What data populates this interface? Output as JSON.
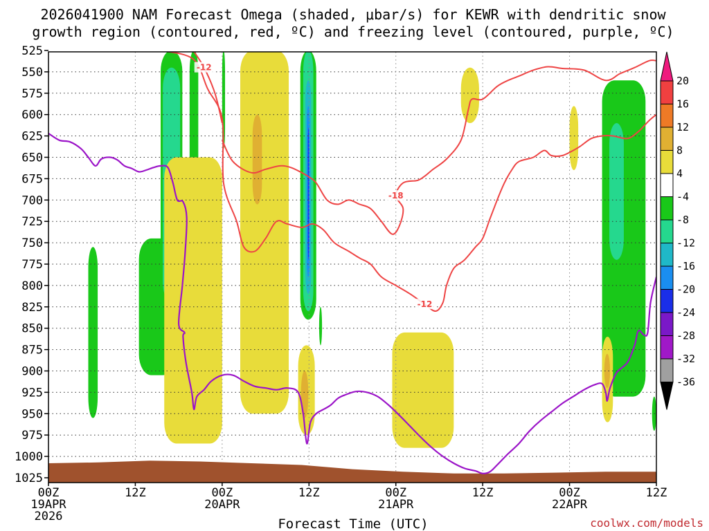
{
  "chart_data": {
    "type": "heatmap",
    "title_line1": "2026041900 NAM Forecast Omega (shaded, μbar/s) for KEWR with dendritic snow",
    "title_line2": "growth region (contoured, red, ºC) and freezing level (contoured, purple, ºC)",
    "xlabel": "Forecast Time (UTC)",
    "credit": "coolwx.com/models",
    "x_ticks": [
      {
        "hour": 0,
        "lines": [
          "00Z",
          "19APR",
          "2026"
        ]
      },
      {
        "hour": 12,
        "lines": [
          "12Z"
        ]
      },
      {
        "hour": 24,
        "lines": [
          "00Z",
          "20APR"
        ]
      },
      {
        "hour": 36,
        "lines": [
          "12Z"
        ]
      },
      {
        "hour": 48,
        "lines": [
          "00Z",
          "21APR"
        ]
      },
      {
        "hour": 60,
        "lines": [
          "12Z"
        ]
      },
      {
        "hour": 72,
        "lines": [
          "00Z",
          "22APR"
        ]
      },
      {
        "hour": 84,
        "lines": [
          "12Z"
        ]
      }
    ],
    "x_range": [
      0,
      84
    ],
    "y_ticks": [
      525,
      550,
      575,
      600,
      625,
      650,
      675,
      700,
      725,
      750,
      775,
      800,
      825,
      850,
      875,
      900,
      925,
      950,
      975,
      1000,
      1025
    ],
    "y_range": [
      525,
      1025
    ],
    "y_inverted": true,
    "grid": true,
    "colorbar": {
      "ticks": [
        "20",
        "16",
        "12",
        "8",
        "4",
        "-4",
        "-8",
        "-12",
        "-16",
        "-20",
        "-24",
        "-28",
        "-32",
        "-36"
      ],
      "colors": [
        "#ef1a7e",
        "#f04040",
        "#ee7a26",
        "#e0b032",
        "#e8dc3a",
        "#ffffff",
        "#19c819",
        "#25d88e",
        "#1fb8c8",
        "#1a8ef0",
        "#1a2ee8",
        "#7a18c8",
        "#a018c8",
        "#a0a0a0",
        "#000000"
      ]
    },
    "omega_regions": [
      {
        "value": -8,
        "color": "#19c819",
        "x": [
          15.5,
          18.5
        ],
        "p": [
          525,
          830
        ]
      },
      {
        "value": -8,
        "color": "#19c819",
        "x": [
          19.5,
          20.7
        ],
        "p": [
          525,
          830
        ]
      },
      {
        "value": -8,
        "color": "#19c819",
        "x": [
          24,
          24.4
        ],
        "p": [
          525,
          640
        ]
      },
      {
        "value": -8,
        "color": "#19c819",
        "x": [
          5.5,
          6.8
        ],
        "p": [
          755,
          955
        ]
      },
      {
        "value": -8,
        "color": "#19c819",
        "x": [
          12.5,
          17.5
        ],
        "p": [
          745,
          905
        ]
      },
      {
        "value": -8,
        "color": "#19c819",
        "x": [
          34.8,
          37
        ],
        "p": [
          525,
          840
        ]
      },
      {
        "value": -8,
        "color": "#19c819",
        "x": [
          37.4,
          37.8
        ],
        "p": [
          825,
          870
        ]
      },
      {
        "value": -8,
        "color": "#19c819",
        "x": [
          76.5,
          82.5
        ],
        "p": [
          560,
          930
        ]
      },
      {
        "value": -8,
        "color": "#19c819",
        "x": [
          83.4,
          84
        ],
        "p": [
          930,
          970
        ]
      },
      {
        "value": -12,
        "color": "#25d88e",
        "x": [
          15.8,
          18.2
        ],
        "p": [
          545,
          820
        ]
      },
      {
        "value": -12,
        "color": "#25d88e",
        "x": [
          35.2,
          36.6
        ],
        "p": [
          525,
          830
        ]
      },
      {
        "value": -12,
        "color": "#25d88e",
        "x": [
          77.5,
          79.5
        ],
        "p": [
          610,
          770
        ]
      },
      {
        "value": -16,
        "color": "#1fb8c8",
        "x": [
          35.5,
          36.3
        ],
        "p": [
          560,
          810
        ]
      },
      {
        "value": -20,
        "color": "#1a8ef0",
        "x": [
          35.7,
          36.1
        ],
        "p": [
          590,
          790
        ]
      },
      {
        "value": -24,
        "color": "#1a2ee8",
        "x": [
          35.85,
          36
        ],
        "p": [
          615,
          770
        ]
      },
      {
        "value": 4,
        "color": "#e8dc3a",
        "x": [
          26.5,
          33.2
        ],
        "p": [
          525,
          950
        ]
      },
      {
        "value": 4,
        "color": "#e8dc3a",
        "x": [
          16,
          24
        ],
        "p": [
          650,
          985
        ]
      },
      {
        "value": 4,
        "color": "#e8dc3a",
        "x": [
          34.5,
          36.8
        ],
        "p": [
          870,
          975
        ]
      },
      {
        "value": 4,
        "color": "#e8dc3a",
        "x": [
          47.5,
          56
        ],
        "p": [
          855,
          990
        ]
      },
      {
        "value": 4,
        "color": "#e8dc3a",
        "x": [
          57,
          59.5
        ],
        "p": [
          545,
          610
        ]
      },
      {
        "value": 4,
        "color": "#e8dc3a",
        "x": [
          72,
          73.2
        ],
        "p": [
          590,
          665
        ]
      },
      {
        "value": 4,
        "color": "#e8dc3a",
        "x": [
          76.5,
          78
        ],
        "p": [
          860,
          960
        ]
      },
      {
        "value": 8,
        "color": "#e0b032",
        "x": [
          28.2,
          29.5
        ],
        "p": [
          600,
          705
        ]
      },
      {
        "value": 8,
        "color": "#e0b032",
        "x": [
          34.9,
          35.9
        ],
        "p": [
          900,
          955
        ]
      },
      {
        "value": 8,
        "color": "#e0b032",
        "x": [
          76.8,
          77.6
        ],
        "p": [
          880,
          920
        ]
      }
    ],
    "surface": {
      "label": "terrain",
      "color": "#a0522d",
      "p_top": [
        1008,
        1007,
        1005,
        1006,
        1008,
        1010,
        1015,
        1018,
        1020,
        1020,
        1019,
        1018,
        1018
      ],
      "x": [
        0,
        7,
        14,
        21,
        28,
        35,
        42,
        49,
        56,
        63,
        70,
        77,
        84
      ]
    },
    "red_contours": [
      {
        "level": "-12",
        "points": [
          [
            15.5,
            525
          ],
          [
            20,
            535
          ],
          [
            22,
            570
          ],
          [
            24,
            605
          ],
          [
            24.2,
            680
          ],
          [
            26,
            725
          ],
          [
            27,
            755
          ],
          [
            28.5,
            760
          ],
          [
            30,
            745
          ],
          [
            31.5,
            725
          ],
          [
            33,
            728
          ],
          [
            35,
            732
          ],
          [
            36.5,
            728
          ],
          [
            38,
            735
          ],
          [
            39.5,
            750
          ],
          [
            41.5,
            760
          ],
          [
            43,
            768
          ],
          [
            44.5,
            775
          ],
          [
            46,
            790
          ],
          [
            48,
            800
          ],
          [
            50,
            810
          ],
          [
            52,
            822
          ],
          [
            53.5,
            830
          ],
          [
            54.5,
            820
          ],
          [
            55,
            800
          ],
          [
            56,
            780
          ],
          [
            57.5,
            770
          ],
          [
            59,
            755
          ],
          [
            60,
            745
          ],
          [
            61,
            722
          ],
          [
            62,
            700
          ],
          [
            63,
            680
          ],
          [
            64,
            665
          ],
          [
            65,
            655
          ],
          [
            67,
            650
          ],
          [
            68.5,
            642
          ],
          [
            69.5,
            648
          ],
          [
            71,
            648
          ],
          [
            72.5,
            642
          ],
          [
            73.5,
            637
          ],
          [
            75,
            628
          ],
          [
            76.5,
            625
          ],
          [
            78,
            625
          ],
          [
            80,
            628
          ],
          [
            81.5,
            620
          ],
          [
            83,
            607
          ],
          [
            84,
            600
          ]
        ]
      },
      {
        "level": "-12",
        "points": [
          [
            20,
            525
          ],
          [
            21.5,
            545
          ],
          [
            23,
            575
          ],
          [
            24,
            610
          ]
        ]
      },
      {
        "level": "-18",
        "points": [
          [
            24,
            630
          ],
          [
            25.5,
            655
          ],
          [
            28,
            668
          ],
          [
            30,
            664
          ],
          [
            32,
            660
          ],
          [
            33.5,
            662
          ],
          [
            35,
            668
          ],
          [
            36,
            673
          ],
          [
            37,
            680
          ],
          [
            38.5,
            700
          ],
          [
            40,
            705
          ],
          [
            41.5,
            700
          ],
          [
            43,
            705
          ],
          [
            44.5,
            710
          ],
          [
            46,
            725
          ],
          [
            47.5,
            740
          ],
          [
            48.5,
            730
          ],
          [
            49,
            710
          ],
          [
            48,
            695
          ],
          [
            49,
            680
          ],
          [
            51,
            677
          ],
          [
            52,
            672
          ],
          [
            53,
            665
          ],
          [
            55,
            652
          ],
          [
            57,
            630
          ],
          [
            58,
            595
          ],
          [
            58.5,
            582
          ],
          [
            60,
            582
          ],
          [
            62,
            567
          ],
          [
            63.5,
            560
          ],
          [
            65,
            555
          ],
          [
            67,
            548
          ],
          [
            69,
            544
          ],
          [
            71,
            546
          ],
          [
            74,
            548
          ],
          [
            77,
            560
          ],
          [
            79,
            552
          ],
          [
            81,
            545
          ],
          [
            83,
            537
          ],
          [
            84,
            537
          ]
        ]
      }
    ],
    "purple_contour": {
      "level": "0",
      "points": [
        [
          0,
          622
        ],
        [
          1.5,
          630
        ],
        [
          3,
          632
        ],
        [
          4.5,
          640
        ],
        [
          5.5,
          650
        ],
        [
          6.5,
          660
        ],
        [
          7.3,
          652
        ],
        [
          8.5,
          650
        ],
        [
          9.5,
          653
        ],
        [
          10.5,
          660
        ],
        [
          11.5,
          663
        ],
        [
          12.5,
          667
        ],
        [
          13.5,
          665
        ],
        [
          14.5,
          662
        ],
        [
          15.5,
          660
        ],
        [
          16.5,
          662
        ],
        [
          17.2,
          680
        ],
        [
          17.8,
          700
        ],
        [
          18.6,
          702
        ],
        [
          19.1,
          720
        ],
        [
          18.9,
          760
        ],
        [
          18.5,
          800
        ],
        [
          18,
          845
        ],
        [
          18.8,
          855
        ],
        [
          18.6,
          860
        ],
        [
          19,
          890
        ],
        [
          19.8,
          925
        ],
        [
          20.1,
          945
        ],
        [
          20.5,
          930
        ],
        [
          21.5,
          922
        ],
        [
          22.5,
          912
        ],
        [
          24,
          905
        ],
        [
          25.5,
          905
        ],
        [
          27,
          912
        ],
        [
          28.5,
          918
        ],
        [
          30,
          920
        ],
        [
          31.5,
          922
        ],
        [
          33,
          920
        ],
        [
          34.5,
          925
        ],
        [
          35.2,
          950
        ],
        [
          35.7,
          985
        ],
        [
          36.2,
          960
        ],
        [
          37,
          950
        ],
        [
          38,
          945
        ],
        [
          39,
          940
        ],
        [
          40,
          932
        ],
        [
          41,
          928
        ],
        [
          42.5,
          924
        ],
        [
          44,
          925
        ],
        [
          45.5,
          930
        ],
        [
          47,
          940
        ],
        [
          48.5,
          952
        ],
        [
          50,
          965
        ],
        [
          51.5,
          978
        ],
        [
          53,
          990
        ],
        [
          54.5,
          1000
        ],
        [
          56,
          1008
        ],
        [
          57.5,
          1014
        ],
        [
          59,
          1017
        ],
        [
          60,
          1020
        ],
        [
          61,
          1018
        ],
        [
          62,
          1010
        ],
        [
          63.5,
          997
        ],
        [
          65,
          985
        ],
        [
          66.5,
          970
        ],
        [
          68,
          958
        ],
        [
          69.5,
          948
        ],
        [
          71,
          938
        ],
        [
          72.5,
          930
        ],
        [
          74,
          922
        ],
        [
          75.5,
          916
        ],
        [
          76.5,
          915
        ],
        [
          77,
          925
        ],
        [
          77.2,
          935
        ],
        [
          77.6,
          920
        ],
        [
          78.5,
          902
        ],
        [
          80,
          890
        ],
        [
          81,
          870
        ],
        [
          81.5,
          853
        ],
        [
          82.3,
          858
        ],
        [
          82.8,
          855
        ],
        [
          83.2,
          820
        ],
        [
          84,
          790
        ]
      ]
    }
  }
}
